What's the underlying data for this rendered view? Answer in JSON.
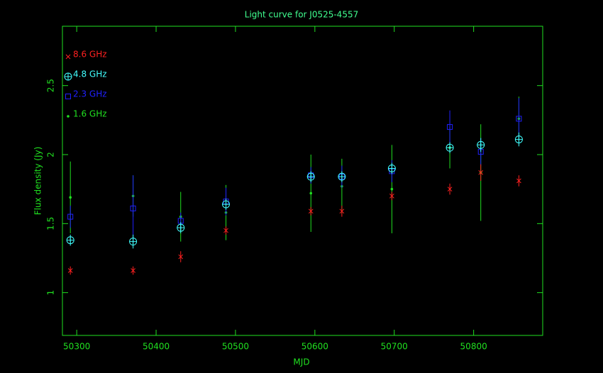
{
  "chart_data": {
    "type": "scatter",
    "title": "Light curve for J0525-4557",
    "x_label": "MJD",
    "y_label": "Flux density (Jy)",
    "x": [
      50292,
      50371,
      50431,
      50488,
      50595,
      50634,
      50697,
      50770,
      50809,
      50857
    ],
    "series": [
      {
        "name": "8.6 GHz",
        "color": "#ff2020",
        "marker": "x",
        "values": [
          1.16,
          1.16,
          1.26,
          1.45,
          1.59,
          1.59,
          1.7,
          1.75,
          1.87,
          1.81
        ],
        "errors": [
          0.03,
          0.03,
          0.04,
          0.03,
          0.03,
          0.04,
          0.03,
          0.04,
          0.06,
          0.04
        ]
      },
      {
        "name": "4.8 GHz",
        "color": "#40ffff",
        "marker": "circle",
        "values": [
          1.38,
          1.37,
          1.47,
          1.64,
          1.84,
          1.84,
          1.9,
          2.05,
          2.07,
          2.11
        ],
        "errors": [
          0.04,
          0.05,
          0.04,
          0.04,
          0.04,
          0.04,
          0.04,
          0.04,
          0.05,
          0.05
        ]
      },
      {
        "name": "2.3 GHz",
        "color": "#2020ff",
        "marker": "square",
        "values": [
          1.55,
          1.61,
          1.52,
          1.66,
          1.85,
          1.84,
          1.88,
          2.2,
          2.02,
          2.26
        ],
        "errors": [
          0.08,
          0.24,
          0.06,
          0.1,
          0.06,
          0.08,
          0.08,
          0.12,
          0.1,
          0.15
        ]
      },
      {
        "name": "1.6 GHz",
        "color": "#20e020",
        "marker": "dot",
        "values": [
          1.69,
          1.7,
          1.55,
          1.58,
          1.72,
          1.77,
          1.75,
          2.05,
          1.87,
          2.26
        ],
        "errors": [
          0.26,
          0.15,
          0.18,
          0.2,
          0.28,
          0.2,
          0.32,
          0.15,
          0.35,
          0.16
        ]
      }
    ],
    "xlim": [
      50282,
      50887
    ],
    "ylim": [
      0.69,
      2.93
    ],
    "xticks": [
      50300,
      50400,
      50500,
      50600,
      50700,
      50800
    ],
    "yticks": [
      1,
      1.5,
      2,
      2.5
    ],
    "legend": "upper-left"
  }
}
